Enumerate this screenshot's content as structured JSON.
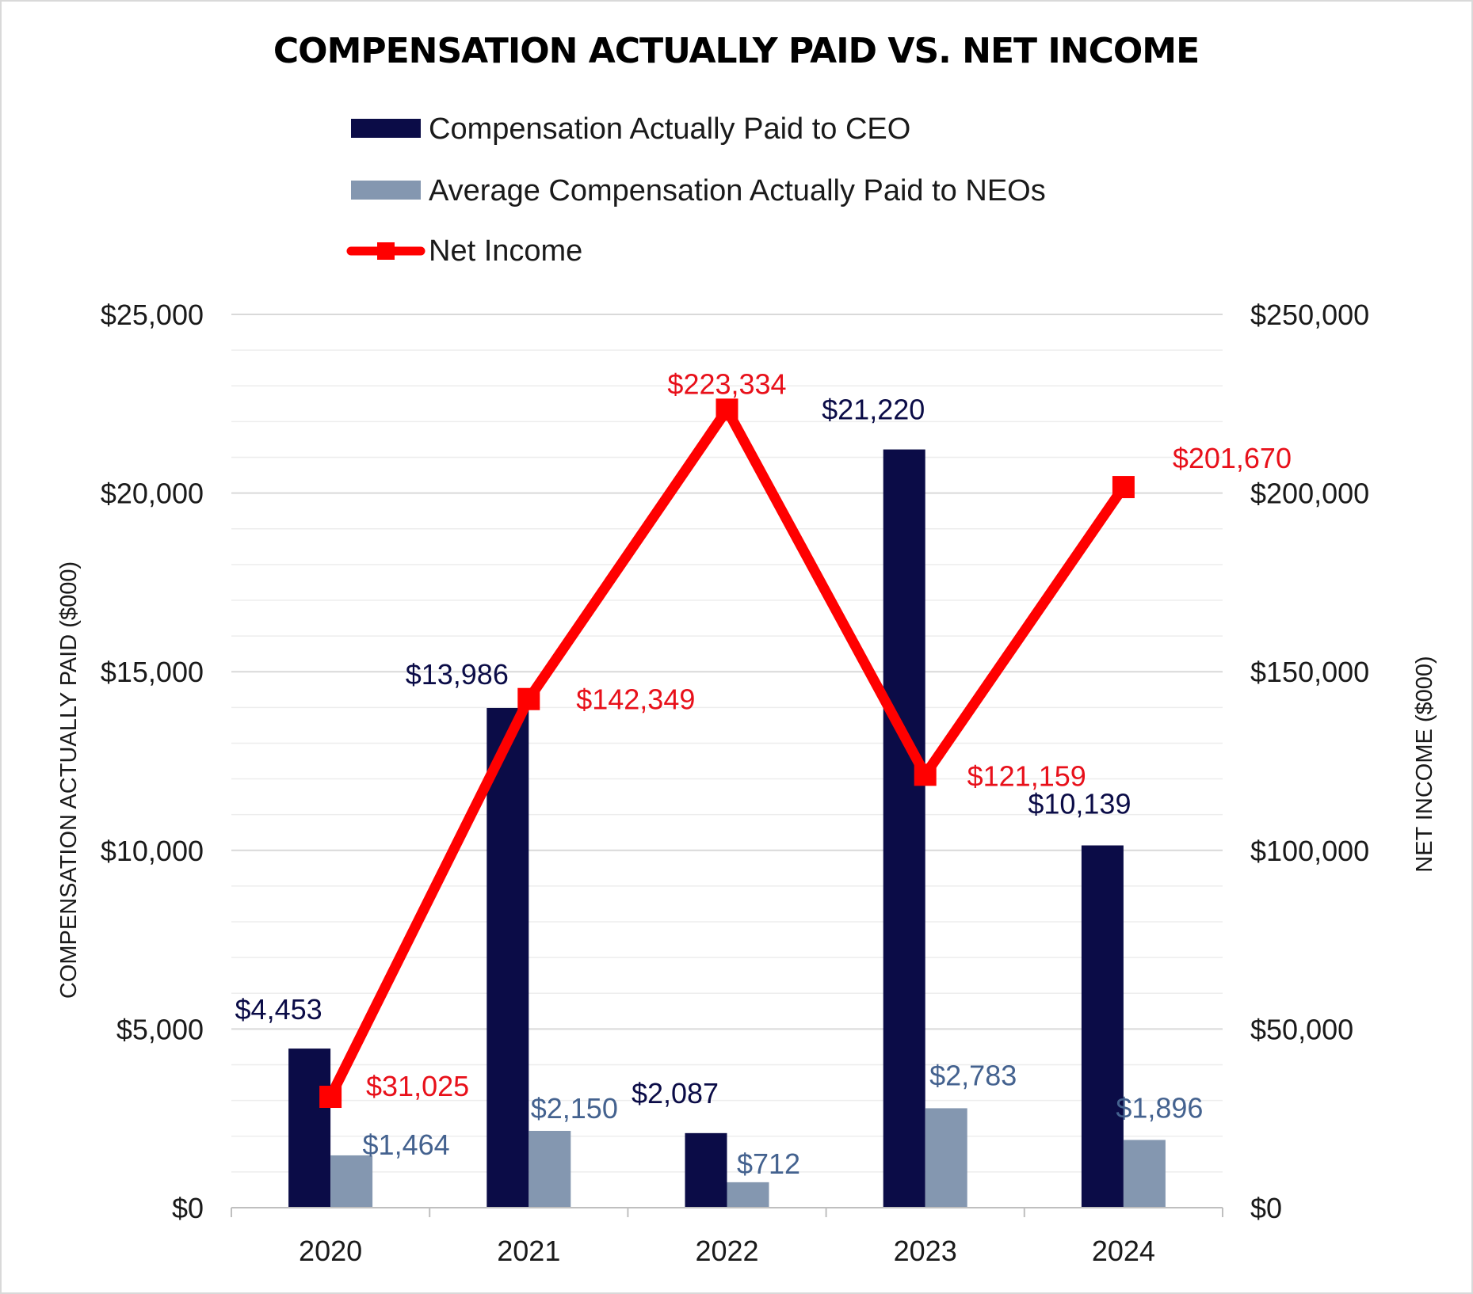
{
  "chart_data": {
    "type": "bar",
    "title": "COMPENSATION ACTUALLY PAID VS. NET INCOME",
    "categories": [
      "2020",
      "2021",
      "2022",
      "2023",
      "2024"
    ],
    "series": [
      {
        "name": "Compensation Actually Paid to CEO",
        "type": "bar",
        "axis": "left",
        "color": "#0b0c47",
        "values": [
          4453,
          13986,
          2087,
          21220,
          10139
        ],
        "labels": [
          "$4,453",
          "$13,986",
          "$2,087",
          "$21,220",
          "$10,139"
        ]
      },
      {
        "name": "Average Compensation Actually Paid to NEOs",
        "type": "bar",
        "axis": "left",
        "color": "#8497b0",
        "label_color": "#44628f",
        "values": [
          1464,
          2150,
          712,
          2783,
          1896
        ],
        "labels": [
          "$1,464",
          "$2,150",
          "$712",
          "$2,783",
          "$1,896"
        ]
      },
      {
        "name": "Net Income",
        "type": "line",
        "axis": "right",
        "color": "#ff0000",
        "label_color": "#e8101a",
        "values": [
          31025,
          142349,
          223334,
          121159,
          201670
        ],
        "labels": [
          "$31,025",
          "$142,349",
          "$223,334",
          "$121,159",
          "$201,670"
        ]
      }
    ],
    "y_left": {
      "label": "COMPENSATION ACTUALLY PAID ($000)",
      "range": [
        0,
        25000
      ],
      "ticks": [
        "$0",
        "$5,000",
        "$10,000",
        "$15,000",
        "$20,000",
        "$25,000"
      ]
    },
    "y_right": {
      "label": "NET INCOME ($000)",
      "range": [
        0,
        250000
      ],
      "ticks": [
        "$0",
        "$50,000",
        "$100,000",
        "$150,000",
        "$200,000",
        "$250,000"
      ]
    },
    "grid": true,
    "legend_position": "top"
  }
}
